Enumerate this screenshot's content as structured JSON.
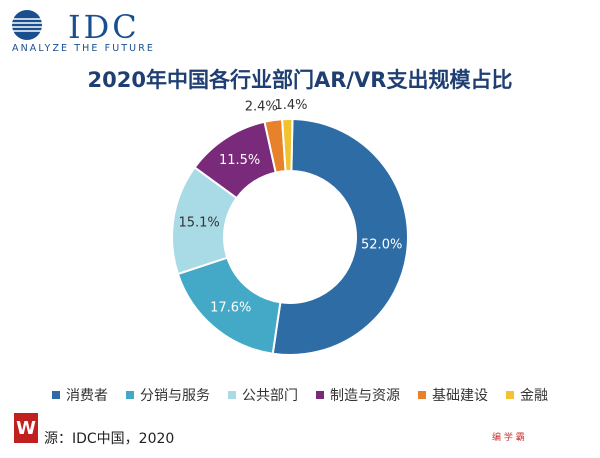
{
  "logo": {
    "name": "IDC",
    "tagline": "ANALYZE THE FUTURE"
  },
  "title": "2020年中国各行业部门AR/VR支出规模占比",
  "chart_data": {
    "type": "pie",
    "donut": true,
    "title": "2020年中国各行业部门AR/VR支出规模占比",
    "categories": [
      "消费者",
      "分销与服务",
      "公共部门",
      "制造与资源",
      "基础建设",
      "金融"
    ],
    "values": [
      52.0,
      17.6,
      15.1,
      11.5,
      2.4,
      1.4
    ],
    "labels": [
      "52.0%",
      "17.6%",
      "15.1%",
      "11.5%",
      "2.4%",
      "1.4%"
    ],
    "colors": [
      "#2e6ca6",
      "#43a9c6",
      "#a9dbe6",
      "#7a2a7b",
      "#e8822a",
      "#f2c230"
    ],
    "legend_position": "bottom"
  },
  "source": "源：IDC中国，2020",
  "badge_text": "W",
  "watermark": "编 学 霸"
}
